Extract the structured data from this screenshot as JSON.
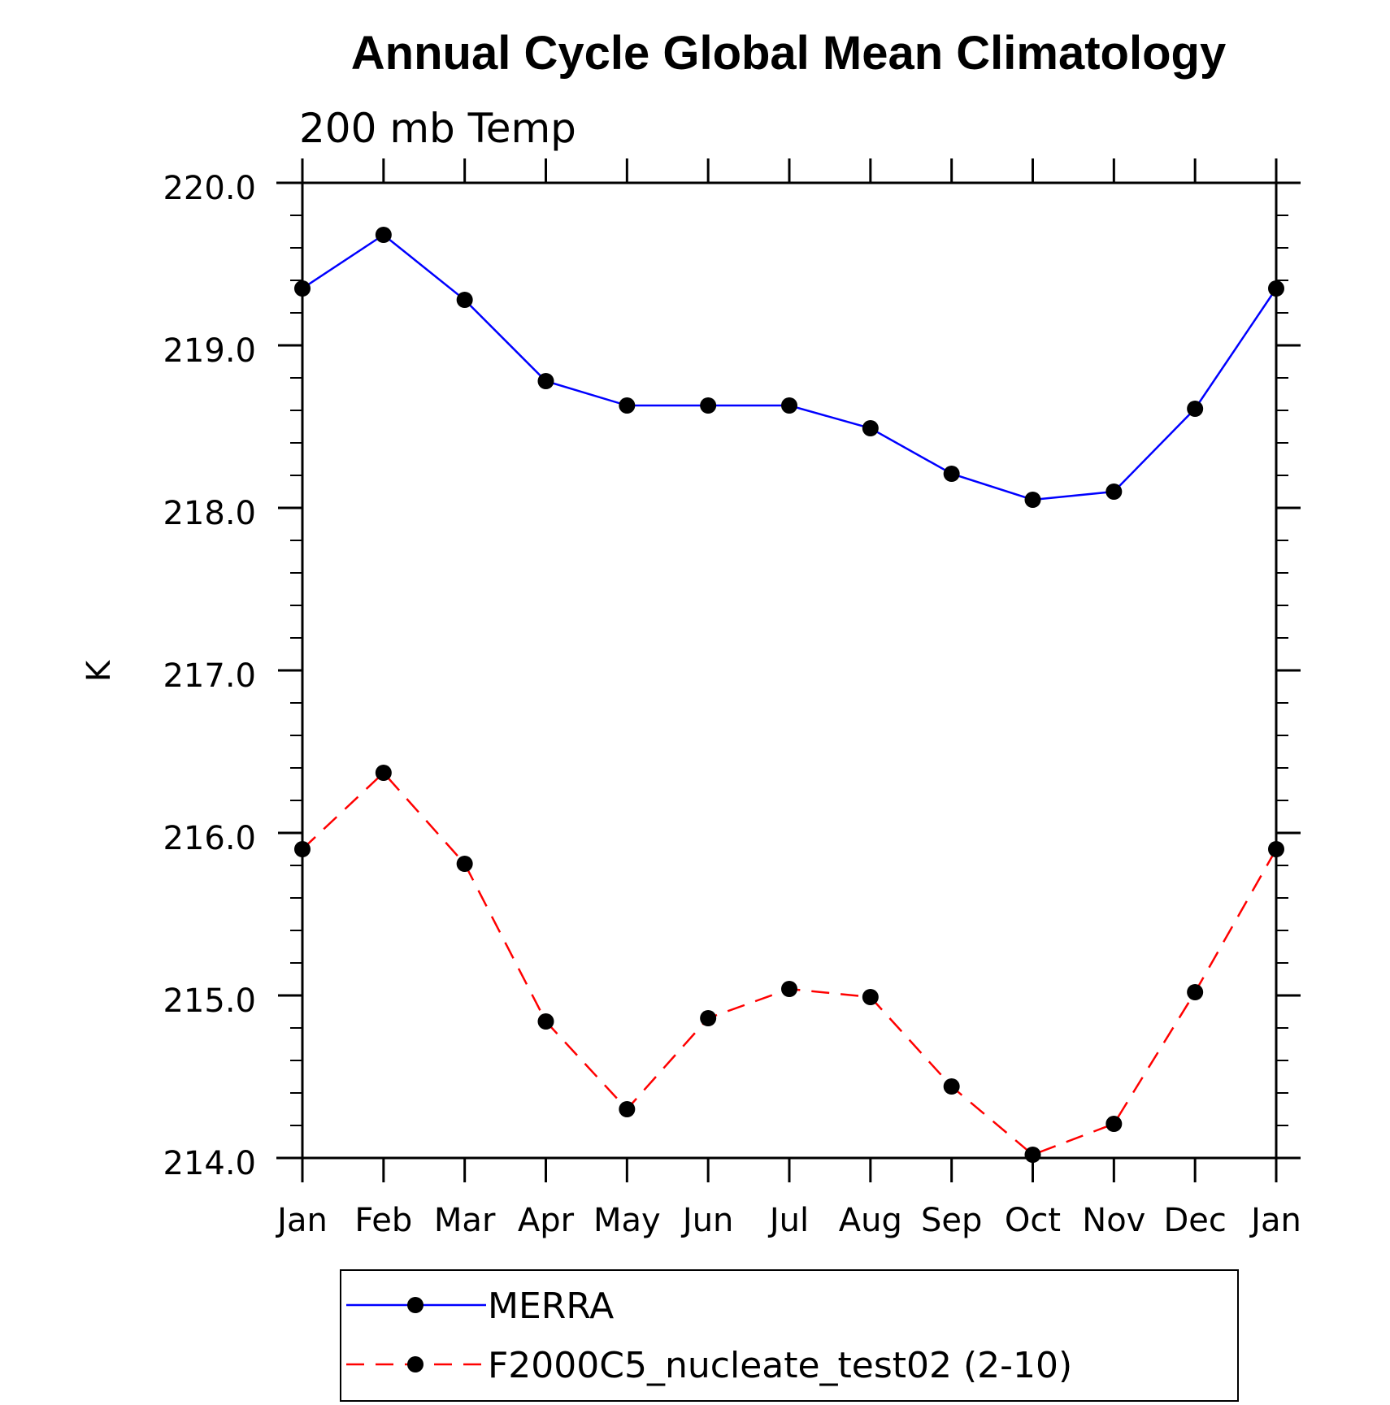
{
  "chart_data": {
    "type": "line",
    "title": "Annual Cycle Global Mean Climatology",
    "subtitle": "200 mb Temp",
    "xlabel": "",
    "ylabel": "K",
    "categories": [
      "Jan",
      "Feb",
      "Mar",
      "Apr",
      "May",
      "Jun",
      "Jul",
      "Aug",
      "Sep",
      "Oct",
      "Nov",
      "Dec",
      "Jan"
    ],
    "ylim": [
      214.0,
      220.0
    ],
    "yticks": [
      "214.0",
      "215.0",
      "216.0",
      "217.0",
      "218.0",
      "219.0",
      "220.0"
    ],
    "grid": false,
    "legend_position": "bottom",
    "series": [
      {
        "name": "MERRA",
        "color": "#0000ff",
        "line_style": "solid",
        "marker": "filled-circle",
        "marker_color": "#000000",
        "values": [
          219.35,
          219.68,
          219.28,
          218.78,
          218.63,
          218.63,
          218.63,
          218.49,
          218.21,
          218.05,
          218.1,
          218.61,
          219.35
        ]
      },
      {
        "name": "F2000C5_nucleate_test02 (2-10)",
        "color": "#ff0000",
        "line_style": "dashed",
        "marker": "filled-circle",
        "marker_color": "#000000",
        "values": [
          215.9,
          216.37,
          215.81,
          214.84,
          214.3,
          214.86,
          215.04,
          214.99,
          214.44,
          214.02,
          214.21,
          215.02,
          215.9
        ]
      }
    ]
  }
}
